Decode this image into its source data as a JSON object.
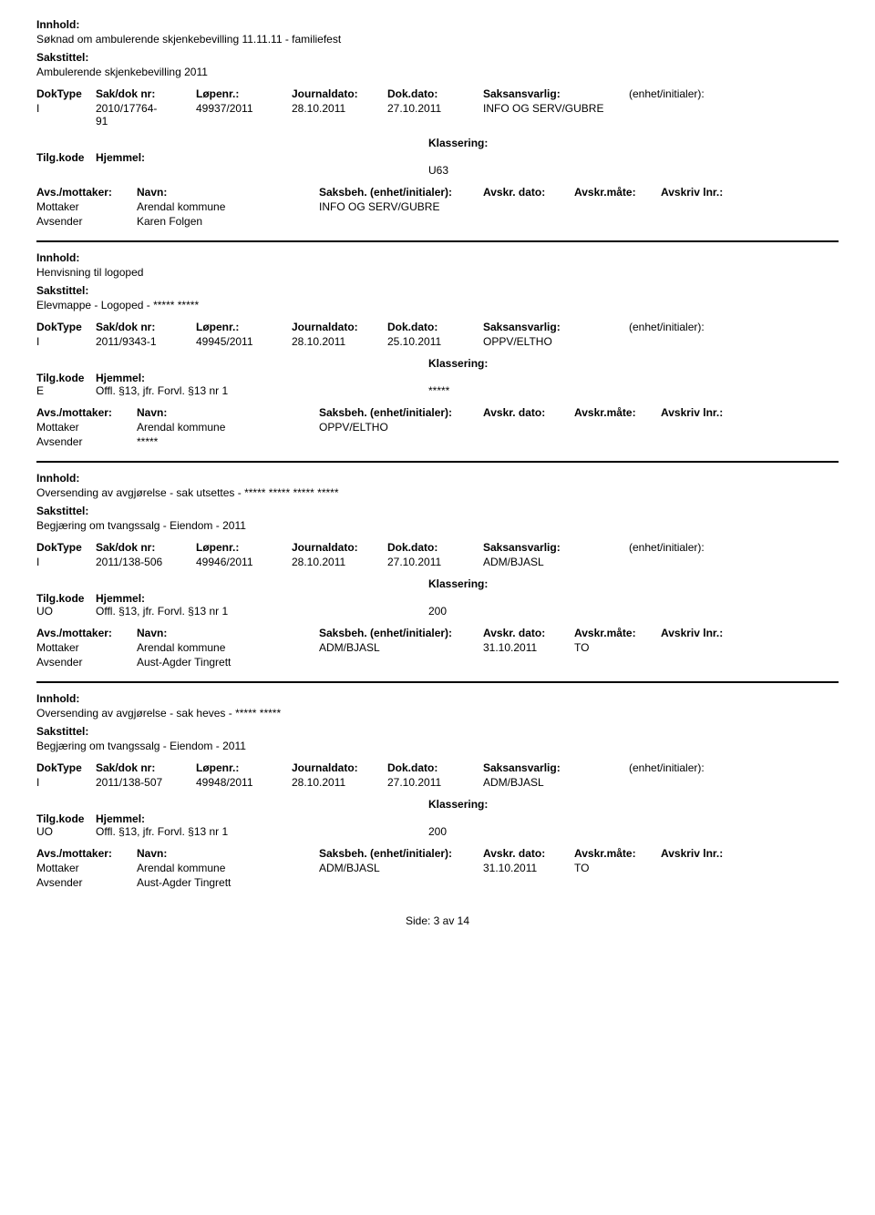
{
  "labels": {
    "innhold": "Innhold:",
    "sakstittel": "Sakstittel:",
    "doktype": "DokType",
    "sakdok": "Sak/dok nr:",
    "lopenr": "Løpenr.:",
    "journaldato": "Journaldato:",
    "dokdato": "Dok.dato:",
    "saksansvarlig": "Saksansvarlig:",
    "enhet": "(enhet/initialer):",
    "tilgkode": "Tilg.kode",
    "hjemmel": "Hjemmel:",
    "klassering": "Klassering:",
    "avsmottaker": "Avs./mottaker:",
    "navn": "Navn:",
    "saksbeh": "Saksbeh. (enhet/initialer):",
    "avskrdato": "Avskr. dato:",
    "avskrmate": "Avskr.måte:",
    "avskrivlnr": "Avskriv lnr.:",
    "mottaker": "Mottaker",
    "avsender": "Avsender"
  },
  "records": [
    {
      "innhold": "Søknad om ambulerende skjenkebevilling 11.11.11 - familiefest",
      "sakstittel": "Ambulerende skjenkebevilling 2011",
      "doktype": "I",
      "sakdok": "2010/17764-91",
      "lopenr": "49937/2011",
      "journaldato": "28.10.2011",
      "dokdato": "27.10.2011",
      "saksansvarlig": "INFO OG SERV/GUBRE",
      "tilgkode": "",
      "hjemmel": "",
      "klassering": "U63",
      "parties": [
        {
          "type": "Mottaker",
          "navn": "Arendal kommune",
          "saksbeh": "INFO OG SERV/GUBRE",
          "avskrdato": "",
          "avskrmate": ""
        },
        {
          "type": "Avsender",
          "navn": "Karen Folgen",
          "saksbeh": "",
          "avskrdato": "",
          "avskrmate": ""
        }
      ]
    },
    {
      "innhold": "Henvisning til logoped",
      "sakstittel": "Elevmappe - Logoped - ***** *****",
      "doktype": "I",
      "sakdok": "2011/9343-1",
      "lopenr": "49945/2011",
      "journaldato": "28.10.2011",
      "dokdato": "25.10.2011",
      "saksansvarlig": "OPPV/ELTHO",
      "tilgkode": "E",
      "hjemmel": "Offl. §13, jfr. Forvl. §13 nr 1",
      "klassering": "*****",
      "parties": [
        {
          "type": "Mottaker",
          "navn": "Arendal kommune",
          "saksbeh": "OPPV/ELTHO",
          "avskrdato": "",
          "avskrmate": ""
        },
        {
          "type": "Avsender",
          "navn": "*****",
          "saksbeh": "",
          "avskrdato": "",
          "avskrmate": ""
        }
      ]
    },
    {
      "innhold": "Oversending av avgjørelse - sak utsettes - ***** ***** ***** *****",
      "sakstittel": "Begjæring om tvangssalg - Eiendom - 2011",
      "doktype": "I",
      "sakdok": "2011/138-506",
      "lopenr": "49946/2011",
      "journaldato": "28.10.2011",
      "dokdato": "27.10.2011",
      "saksansvarlig": "ADM/BJASL",
      "tilgkode": "UO",
      "hjemmel": "Offl. §13, jfr. Forvl. §13 nr 1",
      "klassering": "200",
      "parties": [
        {
          "type": "Mottaker",
          "navn": "Arendal kommune",
          "saksbeh": "ADM/BJASL",
          "avskrdato": "31.10.2011",
          "avskrmate": "TO"
        },
        {
          "type": "Avsender",
          "navn": "Aust-Agder Tingrett",
          "saksbeh": "",
          "avskrdato": "",
          "avskrmate": ""
        }
      ]
    },
    {
      "innhold": "Oversending av avgjørelse - sak heves - ***** *****",
      "sakstittel": "Begjæring om tvangssalg - Eiendom - 2011",
      "doktype": "I",
      "sakdok": "2011/138-507",
      "lopenr": "49948/2011",
      "journaldato": "28.10.2011",
      "dokdato": "27.10.2011",
      "saksansvarlig": "ADM/BJASL",
      "tilgkode": "UO",
      "hjemmel": "Offl. §13, jfr. Forvl. §13 nr 1",
      "klassering": "200",
      "parties": [
        {
          "type": "Mottaker",
          "navn": "Arendal kommune",
          "saksbeh": "ADM/BJASL",
          "avskrdato": "31.10.2011",
          "avskrmate": "TO"
        },
        {
          "type": "Avsender",
          "navn": "Aust-Agder Tingrett",
          "saksbeh": "",
          "avskrdato": "",
          "avskrmate": ""
        }
      ]
    }
  ],
  "footer": "Side: 3 av 14"
}
